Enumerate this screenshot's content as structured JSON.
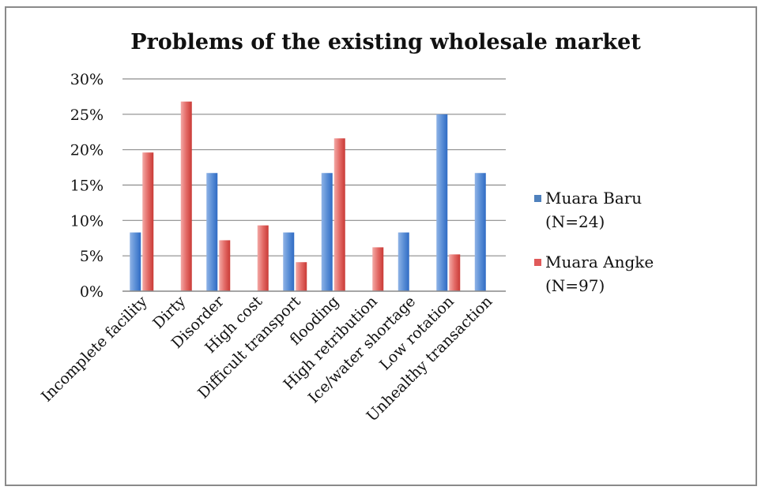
{
  "chart_data": {
    "type": "bar",
    "title": "Problems of the existing wholesale market",
    "xlabel": "",
    "ylabel": "",
    "ylim": [
      0,
      0.3
    ],
    "yticks": [
      "0%",
      "5%",
      "10%",
      "15%",
      "20%",
      "25%",
      "30%"
    ],
    "grid": true,
    "legend_position": "right",
    "categories": [
      "Incomplete facility",
      "Dirty",
      "Disorder",
      "High cost",
      "Difficult transport",
      "flooding",
      "High retribution",
      "Ice/water shortage",
      "Low rotation",
      "Unhealthy transaction"
    ],
    "series": [
      {
        "name_line1": "Muara Baru",
        "name_line2": "(N=24)",
        "color": "#4f81bd",
        "values": [
          0.083,
          0,
          0.167,
          0,
          0.083,
          0.167,
          0,
          0.083,
          0.25,
          0.167
        ]
      },
      {
        "name_line1": "Muara Angke",
        "name_line2": "(N=97)",
        "color": "#e05a5a",
        "values": [
          0.196,
          0.268,
          0.072,
          0.093,
          0.041,
          0.216,
          0.062,
          0,
          0.052,
          0
        ]
      }
    ]
  }
}
